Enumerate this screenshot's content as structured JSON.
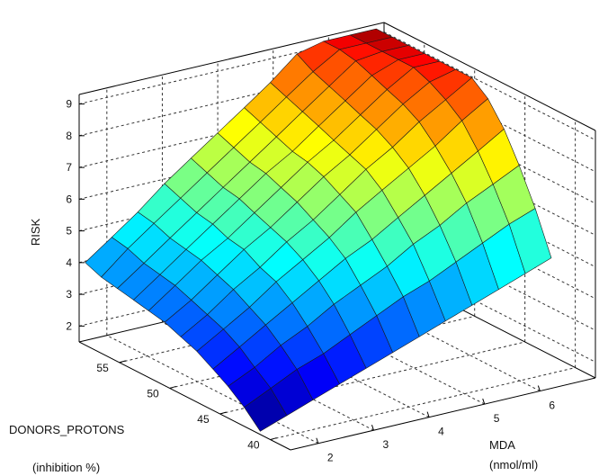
{
  "chart_data": {
    "type": "surface",
    "xlabel": "MDA",
    "xlabel_unit": "(nmol/ml)",
    "ylabel": "DONORS_PROTONS",
    "ylabel_unit": "(inhibition  %)",
    "zlabel": "RISK",
    "x_ticks": [
      "2",
      "3",
      "4",
      "5",
      "6"
    ],
    "y_ticks": [
      "40",
      "45",
      "50",
      "55"
    ],
    "z_ticks": [
      "2",
      "3",
      "4",
      "5",
      "6",
      "7",
      "8",
      "9"
    ],
    "xlim": [
      1.5,
      7
    ],
    "ylim": [
      38,
      59
    ],
    "zlim": [
      1.5,
      9.3
    ],
    "grid": true,
    "colormap": "jet",
    "x": [
      1.5,
      1.98,
      2.45,
      2.93,
      3.41,
      3.89,
      4.37,
      4.84,
      5.32,
      5.8,
      6.28,
      6.75
    ],
    "y": [
      41,
      42.6,
      44.2,
      45.7,
      47.3,
      48.9,
      50.5,
      52.1,
      53.6,
      55.2,
      56.8,
      58.4
    ],
    "z": [
      [
        1.6,
        1.9,
        2.2,
        2.5,
        2.8,
        3.1,
        3.4,
        3.7,
        4.0,
        4.3,
        4.6,
        4.9
      ],
      [
        2.1,
        2.5,
        2.9,
        3.2,
        3.6,
        4.0,
        4.4,
        4.7,
        5.1,
        5.5,
        5.9,
        6.2
      ],
      [
        2.5,
        2.9,
        3.4,
        3.8,
        4.3,
        4.7,
        5.1,
        5.6,
        6.0,
        6.5,
        6.9,
        7.3
      ],
      [
        2.8,
        3.3,
        3.8,
        4.3,
        4.8,
        5.3,
        5.7,
        6.2,
        6.7,
        7.2,
        7.7,
        8.2
      ],
      [
        3.1,
        3.6,
        4.1,
        4.7,
        5.2,
        5.7,
        6.3,
        6.8,
        7.3,
        7.8,
        8.4,
        8.9
      ],
      [
        3.3,
        3.8,
        4.4,
        4.9,
        5.5,
        6.0,
        6.6,
        7.2,
        7.7,
        8.3,
        8.8,
        9.4
      ],
      [
        3.5,
        4.0,
        4.6,
        5.2,
        5.7,
        6.3,
        6.9,
        7.4,
        8.0,
        8.6,
        9.1,
        9.7
      ],
      [
        3.6,
        4.2,
        4.8,
        5.3,
        5.9,
        6.5,
        7.1,
        7.6,
        8.2,
        8.8,
        9.4,
        9.9
      ],
      [
        3.7,
        4.3,
        4.9,
        5.5,
        6.1,
        6.7,
        7.2,
        7.8,
        8.4,
        9.0,
        9.6,
        10.1
      ],
      [
        3.8,
        4.4,
        5.0,
        5.6,
        6.2,
        6.8,
        7.4,
        8.0,
        8.6,
        9.2,
        9.8,
        10.4
      ],
      [
        3.9,
        4.6,
        5.2,
        5.8,
        6.4,
        7.0,
        7.6,
        8.2,
        8.8,
        9.4,
        10.0,
        10.6
      ],
      [
        4.1,
        4.7,
        5.3,
        6.0,
        6.6,
        7.2,
        7.8,
        8.4,
        9.1,
        9.7,
        10.3,
        10.9
      ]
    ]
  }
}
